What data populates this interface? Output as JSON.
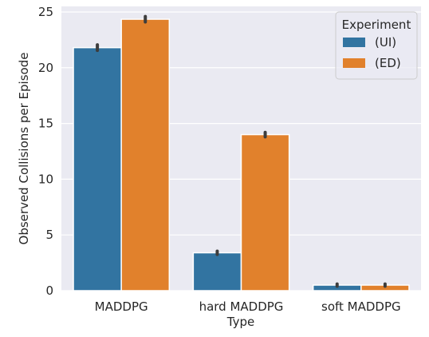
{
  "chart_data": {
    "type": "bar",
    "title": "",
    "xlabel": "Type",
    "ylabel": "Observed Collisions per Episode",
    "categories": [
      "MADDPG",
      "hard MADDPG",
      "soft MADDPG"
    ],
    "series": [
      {
        "name": "(UI)",
        "color": "#3274a1",
        "values": [
          21.8,
          3.4,
          0.5
        ],
        "err": [
          0.25,
          0.15,
          0.1
        ]
      },
      {
        "name": "(ED)",
        "color": "#e1812c",
        "values": [
          24.35,
          14.0,
          0.5
        ],
        "err": [
          0.25,
          0.2,
          0.1
        ]
      }
    ],
    "ylim": [
      0,
      25.5
    ],
    "yticks": [
      0,
      5,
      10,
      15,
      20,
      25
    ],
    "grid": true,
    "background": "#eaeaf2",
    "legend": {
      "title": "Experiment",
      "position": "top-right"
    }
  }
}
